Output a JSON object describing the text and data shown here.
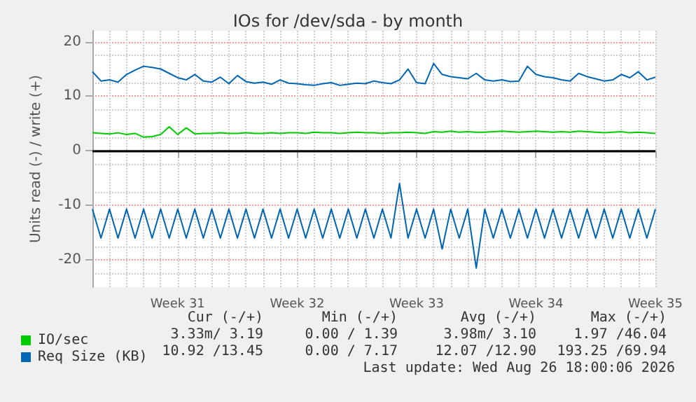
{
  "chart_data": {
    "type": "line",
    "title": "IOs for /dev/sda - by month",
    "ylabel": "Units read (-) / write (+)",
    "categories": [
      null,
      null,
      null,
      null,
      null,
      null,
      null,
      null,
      null,
      null,
      "Week 31",
      null,
      null,
      null,
      null,
      null,
      null,
      null,
      null,
      null,
      null,
      null,
      null,
      null,
      "Week 32",
      null,
      null,
      null,
      null,
      null,
      null,
      null,
      null,
      null,
      null,
      null,
      null,
      null,
      "Week 33",
      null,
      null,
      null,
      null,
      null,
      null,
      null,
      null,
      null,
      null,
      null,
      null,
      null,
      "Week 34",
      null,
      null,
      null,
      null,
      null,
      null,
      null,
      null,
      null,
      null,
      null,
      null,
      null,
      "Week 35"
    ],
    "series": [
      {
        "name": "IO/sec",
        "color": "#00cc00",
        "values": [
          3.3,
          3.2,
          3.1,
          3.3,
          3.0,
          3.2,
          2.5,
          2.6,
          3.0,
          4.4,
          3.0,
          4.2,
          3.1,
          3.2,
          3.2,
          3.3,
          3.2,
          3.2,
          3.3,
          3.2,
          3.2,
          3.3,
          3.2,
          3.3,
          3.3,
          3.2,
          3.4,
          3.3,
          3.3,
          3.2,
          3.3,
          3.4,
          3.3,
          3.3,
          3.2,
          3.3,
          3.3,
          3.4,
          3.3,
          3.2,
          3.5,
          3.4,
          3.6,
          3.4,
          3.5,
          3.4,
          3.4,
          3.5,
          3.6,
          3.5,
          3.4,
          3.5,
          3.6,
          3.5,
          3.4,
          3.5,
          3.4,
          3.6,
          3.5,
          3.4,
          3.3,
          3.4,
          3.5,
          3.3,
          3.4,
          3.3,
          3.2
        ]
      },
      {
        "name": "Req Size (KB)",
        "color": "#0066b3",
        "values": [
          14.5,
          12.8,
          13.0,
          12.6,
          14.0,
          14.8,
          15.5,
          15.3,
          15.0,
          14.2,
          13.4,
          13.0,
          14.0,
          12.8,
          12.6,
          13.5,
          12.3,
          13.8,
          12.7,
          12.4,
          12.6,
          12.2,
          13.0,
          12.4,
          12.3,
          12.1,
          12.0,
          12.3,
          12.5,
          12.0,
          12.2,
          12.4,
          12.3,
          12.8,
          12.5,
          12.3,
          13.0,
          15.0,
          12.5,
          12.3,
          16.0,
          14.0,
          13.6,
          13.4,
          13.2,
          14.2,
          13.0,
          12.8,
          13.0,
          12.7,
          12.8,
          15.5,
          14.0,
          13.6,
          13.4,
          13.0,
          12.8,
          14.2,
          13.6,
          13.2,
          12.8,
          13.0,
          14.0,
          13.4,
          14.5,
          13.0,
          13.5
        ]
      },
      {
        "color": "#0066b3",
        "values": [
          -10.7,
          -16.0,
          -10.7,
          -16.0,
          -10.7,
          -16.0,
          -10.7,
          -16.0,
          -10.7,
          -16.0,
          -10.7,
          -16.0,
          -10.7,
          -16.0,
          -10.7,
          -16.0,
          -10.7,
          -16.0,
          -10.7,
          -16.0,
          -10.7,
          -16.0,
          -10.7,
          -16.0,
          -10.7,
          -16.0,
          -10.7,
          -16.0,
          -10.7,
          -16.0,
          -10.7,
          -16.0,
          -10.7,
          -16.0,
          -10.7,
          -16.0,
          -6.0,
          -16.0,
          -10.7,
          -16.0,
          -10.7,
          -18.0,
          -10.7,
          -16.0,
          -10.7,
          -21.5,
          -10.7,
          -16.0,
          -10.7,
          -16.0,
          -10.7,
          -16.0,
          -10.7,
          -16.0,
          -10.7,
          -16.0,
          -10.7,
          -16.0,
          -10.7,
          -16.0,
          -10.7,
          -16.0,
          -10.7,
          -16.0,
          -10.7,
          -16.0,
          -10.7
        ]
      }
    ],
    "ylim": [
      -25,
      22
    ],
    "yticks": [
      -20,
      -10,
      0,
      10,
      20
    ],
    "ref_lines": [
      {
        "axis": "y",
        "value": 0,
        "color": "#000000"
      }
    ],
    "grid": true,
    "legend": "bottom left",
    "marker": "none",
    "line_style": "solid",
    "annotations": [
      "Cur (-/+)",
      "Min (-/+)",
      "Avg (-/+)",
      "Max (-/+)",
      "3.33m/ 3.19",
      "0.00 / 1.39",
      "3.98m/ 3.10",
      "1.97 /46.04",
      "10.92 /13.45",
      "0.00 / 7.17",
      "12.07 /12.90",
      "193.25 /69.94",
      "Last update: Wed Aug 26 18:00:06 2026"
    ]
  }
}
